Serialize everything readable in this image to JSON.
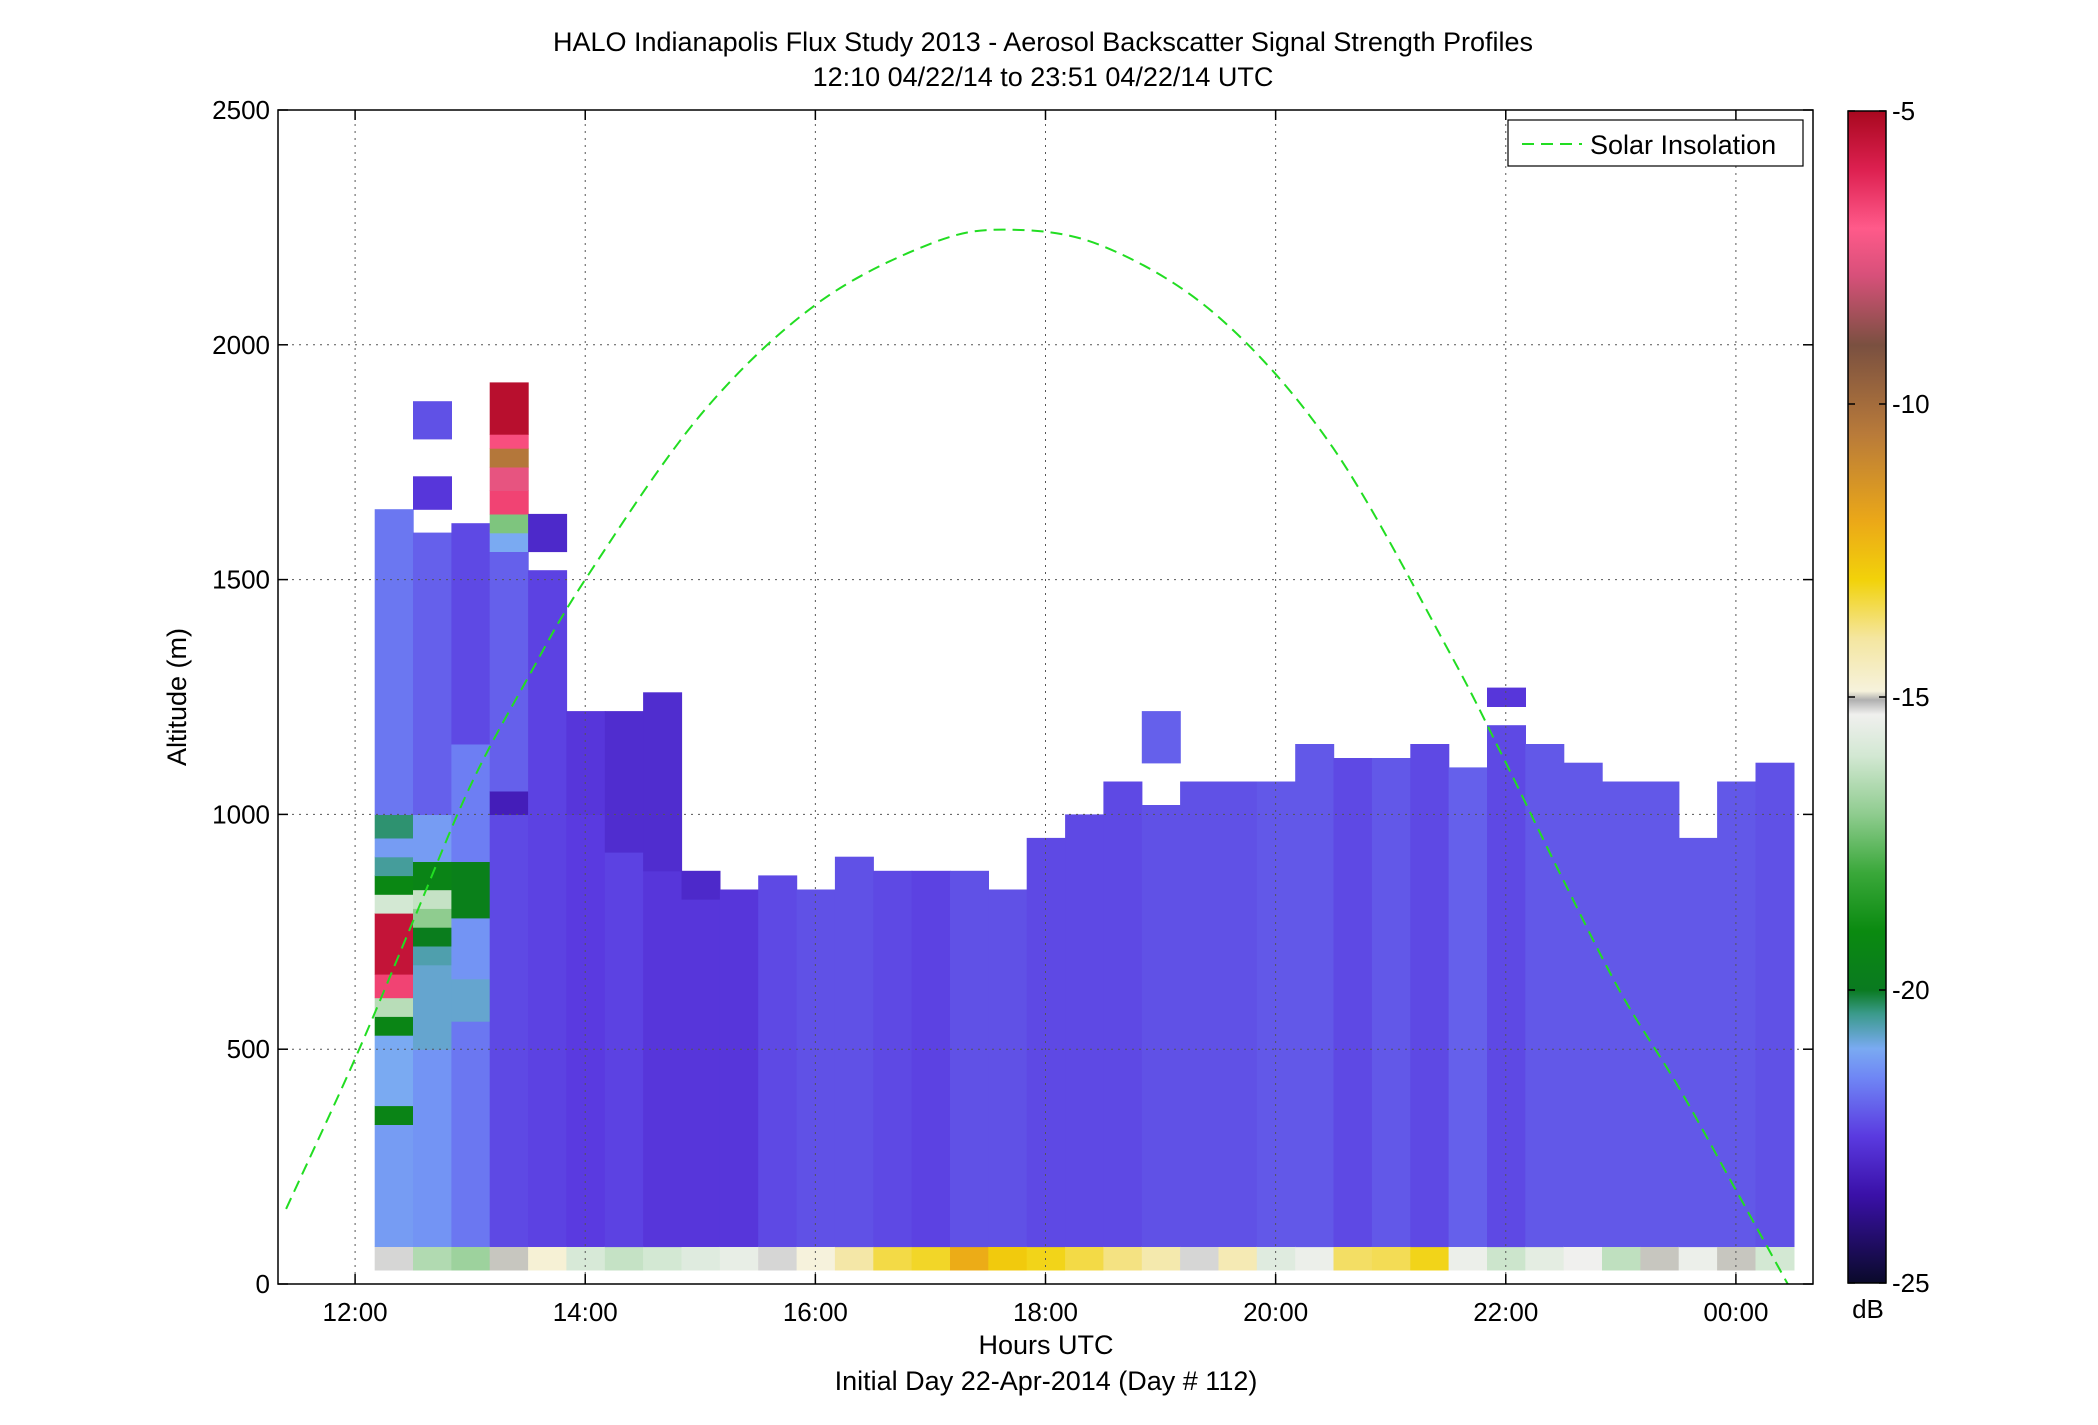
{
  "chart_data": {
    "type": "heatmap",
    "title": "HALO Indianapolis Flux Study 2013 - Aerosol Backscatter Signal Strength Profiles",
    "subtitle": "12:10 04/22/14 to 23:51 04/22/14  UTC",
    "xlabel": "Hours UTC",
    "xlabel2": "Initial Day 22-Apr-2014 (Day # 112)",
    "ylabel": "Altitude (m)",
    "x_ticks": [
      "12:00",
      "14:00",
      "16:00",
      "18:00",
      "20:00",
      "22:00",
      "00:00"
    ],
    "x_tick_hours": [
      12,
      14,
      16,
      18,
      20,
      22,
      24
    ],
    "xlim_hours": [
      11.33,
      24.67
    ],
    "y_ticks": [
      "0",
      "500",
      "1000",
      "1500",
      "2000",
      "2500"
    ],
    "y_tick_values": [
      0,
      500,
      1000,
      1500,
      2000,
      2500
    ],
    "ylim": [
      0,
      2500
    ],
    "grid": true,
    "legend": {
      "entries": [
        "Solar Insolation"
      ],
      "position": "top-right"
    },
    "colorbar": {
      "label": "dB",
      "range": [
        -25,
        -5
      ],
      "ticks": [
        "-5",
        "-10",
        "-15",
        "-20",
        "-25"
      ],
      "tick_values": [
        -5,
        -10,
        -15,
        -20,
        -25
      ]
    },
    "solar_insolation": {
      "style": "dashed",
      "color": "#22dd22",
      "peak_hour": 17.67,
      "peak_altitude": 2245,
      "points": [
        [
          11.4,
          160
        ],
        [
          12,
          480
        ],
        [
          12.5,
          770
        ],
        [
          13,
          1060
        ],
        [
          13.5,
          1290
        ],
        [
          14,
          1500
        ],
        [
          15,
          1850
        ],
        [
          16,
          2085
        ],
        [
          17,
          2215
        ],
        [
          17.67,
          2245
        ],
        [
          18.5,
          2210
        ],
        [
          19.5,
          2060
        ],
        [
          20.5,
          1780
        ],
        [
          21.5,
          1350
        ],
        [
          22,
          1110
        ],
        [
          22.5,
          860
        ],
        [
          23,
          620
        ],
        [
          23.5,
          420
        ],
        [
          24,
          200
        ],
        [
          24.45,
          0
        ]
      ]
    },
    "heatmap": {
      "x_start_hour": 12.17,
      "bin_hours": 0.33333,
      "y_start": 30,
      "bin_m": 53,
      "columns": [
        {
          "col": 0,
          "segments": [
            [
              30,
              80,
              -15.2
            ],
            [
              80,
              340,
              -21.2
            ],
            [
              340,
              380,
              -19.4
            ],
            [
              380,
              530,
              -21.0
            ],
            [
              530,
              570,
              -19.3
            ],
            [
              570,
              610,
              -16.4
            ],
            [
              610,
              660,
              -6.6
            ],
            [
              660,
              790,
              -5.5
            ],
            [
              790,
              830,
              -16.0
            ],
            [
              830,
              870,
              -19.2
            ],
            [
              870,
              910,
              -20.5
            ],
            [
              910,
              950,
              -21.2
            ],
            [
              950,
              1000,
              -20.3
            ],
            [
              1000,
              1650,
              -21.7
            ]
          ]
        },
        {
          "col": 1,
          "segments": [
            [
              30,
              80,
              -16.5
            ],
            [
              80,
              500,
              -21.3
            ],
            [
              500,
              680,
              -20.8
            ],
            [
              680,
              720,
              -20.6
            ],
            [
              720,
              760,
              -19.8
            ],
            [
              760,
              800,
              -17.0
            ],
            [
              800,
              840,
              -16.2
            ],
            [
              840,
              900,
              -19.4
            ],
            [
              900,
              1000,
              -21.2
            ],
            [
              1000,
              1600,
              -22.0
            ],
            [
              1650,
              1720,
              -22.6
            ],
            [
              1800,
              1880,
              -22.2
            ]
          ]
        },
        {
          "col": 2,
          "segments": [
            [
              30,
              80,
              -16.8
            ],
            [
              80,
              560,
              -21.7
            ],
            [
              560,
              650,
              -20.8
            ],
            [
              650,
              780,
              -21.3
            ],
            [
              780,
              900,
              -19.6
            ],
            [
              900,
              1150,
              -21.6
            ],
            [
              1150,
              1620,
              -22.3
            ]
          ]
        },
        {
          "col": 3,
          "segments": [
            [
              30,
              80,
              -15.0
            ],
            [
              80,
              1000,
              -22.3
            ],
            [
              1000,
              1050,
              -23.2
            ],
            [
              1050,
              1560,
              -22.0
            ],
            [
              1560,
              1600,
              -21.0
            ],
            [
              1600,
              1640,
              -17.2
            ],
            [
              1640,
              1690,
              -6.6
            ],
            [
              1690,
              1740,
              -7.5
            ],
            [
              1740,
              1780,
              -10.4
            ],
            [
              1780,
              1810,
              -6.8
            ],
            [
              1810,
              1920,
              -5.3
            ]
          ]
        },
        {
          "col": 4,
          "segments": [
            [
              30,
              80,
              -14.8
            ],
            [
              80,
              1000,
              -22.4
            ],
            [
              1000,
              1520,
              -22.4
            ],
            [
              1560,
              1640,
              -22.9
            ]
          ]
        },
        {
          "col": 5,
          "segments": [
            [
              30,
              80,
              -15.9
            ],
            [
              80,
              1000,
              -22.5
            ],
            [
              1000,
              1220,
              -22.6
            ]
          ]
        },
        {
          "col": 6,
          "segments": [
            [
              30,
              80,
              -16.2
            ],
            [
              80,
              920,
              -22.4
            ],
            [
              920,
              1220,
              -22.8
            ]
          ]
        },
        {
          "col": 7,
          "segments": [
            [
              30,
              80,
              -16.0
            ],
            [
              80,
              880,
              -22.6
            ],
            [
              880,
              1260,
              -22.8
            ]
          ]
        },
        {
          "col": 8,
          "segments": [
            [
              30,
              80,
              -15.7
            ],
            [
              80,
              820,
              -22.6
            ],
            [
              820,
              880,
              -22.9
            ]
          ]
        },
        {
          "col": 9,
          "segments": [
            [
              30,
              80,
              -15.5
            ],
            [
              80,
              840,
              -22.6
            ]
          ]
        },
        {
          "col": 10,
          "segments": [
            [
              30,
              80,
              -15.2
            ],
            [
              80,
              870,
              -22.3
            ]
          ]
        },
        {
          "col": 11,
          "segments": [
            [
              30,
              80,
              -14.9
            ],
            [
              80,
              840,
              -22.2
            ]
          ]
        },
        {
          "col": 12,
          "segments": [
            [
              30,
              80,
              -14.1
            ],
            [
              80,
              910,
              -22.2
            ]
          ]
        },
        {
          "col": 13,
          "segments": [
            [
              30,
              80,
              -13.4
            ],
            [
              80,
              880,
              -22.3
            ]
          ]
        },
        {
          "col": 14,
          "segments": [
            [
              30,
              80,
              -13.2
            ],
            [
              80,
              880,
              -22.4
            ]
          ]
        },
        {
          "col": 15,
          "segments": [
            [
              30,
              80,
              -12.1
            ],
            [
              80,
              880,
              -22.2
            ]
          ]
        },
        {
          "col": 16,
          "segments": [
            [
              30,
              80,
              -12.8
            ],
            [
              80,
              840,
              -22.2
            ]
          ]
        },
        {
          "col": 17,
          "segments": [
            [
              30,
              80,
              -13.1
            ],
            [
              80,
              950,
              -22.3
            ]
          ]
        },
        {
          "col": 18,
          "segments": [
            [
              30,
              80,
              -13.4
            ],
            [
              80,
              1000,
              -22.3
            ]
          ]
        },
        {
          "col": 19,
          "segments": [
            [
              30,
              80,
              -13.8
            ],
            [
              80,
              1070,
              -22.3
            ]
          ]
        },
        {
          "col": 20,
          "segments": [
            [
              30,
              80,
              -14.2
            ],
            [
              80,
              1020,
              -22.2
            ],
            [
              1110,
              1220,
              -22.0
            ]
          ]
        },
        {
          "col": 21,
          "segments": [
            [
              30,
              80,
              -15.2
            ],
            [
              80,
              1070,
              -22.2
            ]
          ]
        },
        {
          "col": 22,
          "segments": [
            [
              30,
              80,
              -14.3
            ],
            [
              80,
              1070,
              -22.2
            ]
          ]
        },
        {
          "col": 23,
          "segments": [
            [
              30,
              80,
              -15.7
            ],
            [
              80,
              1070,
              -22.1
            ]
          ]
        },
        {
          "col": 24,
          "segments": [
            [
              30,
              80,
              -15.4
            ],
            [
              80,
              1150,
              -22.1
            ]
          ]
        },
        {
          "col": 25,
          "segments": [
            [
              30,
              80,
              -13.6
            ],
            [
              80,
              1120,
              -22.3
            ]
          ]
        },
        {
          "col": 26,
          "segments": [
            [
              30,
              80,
              -13.5
            ],
            [
              80,
              1120,
              -22.1
            ]
          ]
        },
        {
          "col": 27,
          "segments": [
            [
              30,
              80,
              -13.1
            ],
            [
              80,
              1150,
              -22.3
            ]
          ]
        },
        {
          "col": 28,
          "segments": [
            [
              30,
              80,
              -15.4
            ],
            [
              80,
              1100,
              -22.0
            ]
          ]
        },
        {
          "col": 29,
          "segments": [
            [
              30,
              80,
              -16.1
            ],
            [
              80,
              1190,
              -22.3
            ],
            [
              1230,
              1270,
              -22.6
            ]
          ]
        },
        {
          "col": 30,
          "segments": [
            [
              30,
              80,
              -15.6
            ],
            [
              80,
              1150,
              -22.1
            ]
          ]
        },
        {
          "col": 31,
          "segments": [
            [
              30,
              80,
              -15.3
            ],
            [
              80,
              1110,
              -22.1
            ]
          ]
        },
        {
          "col": 32,
          "segments": [
            [
              30,
              80,
              -16.3
            ],
            [
              80,
              1070,
              -22.1
            ]
          ]
        },
        {
          "col": 33,
          "segments": [
            [
              30,
              80,
              -15.0
            ],
            [
              80,
              1070,
              -22.1
            ]
          ]
        },
        {
          "col": 34,
          "segments": [
            [
              30,
              80,
              -15.4
            ],
            [
              80,
              950,
              -22.1
            ]
          ]
        },
        {
          "col": 35,
          "segments": [
            [
              30,
              80,
              -15.0
            ],
            [
              80,
              1070,
              -22.1
            ]
          ]
        },
        {
          "col": 36,
          "segments": [
            [
              30,
              80,
              -16.0
            ],
            [
              80,
              1110,
              -22.2
            ]
          ]
        }
      ]
    }
  }
}
